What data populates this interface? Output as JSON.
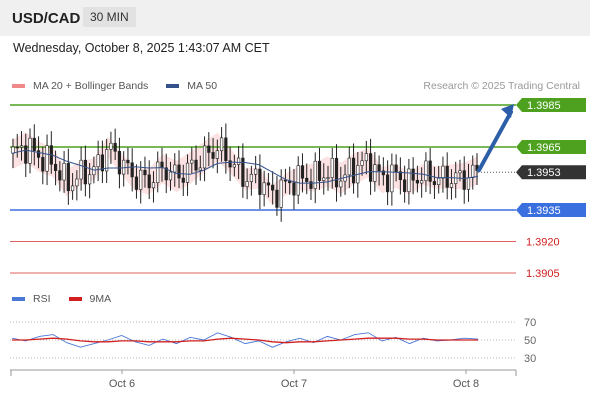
{
  "header": {
    "symbol": "USD/CAD",
    "timeframe": "30 MIN"
  },
  "datetime": "Wednesday, October 8, 2025 1:43:07 AM CET",
  "legend": {
    "ma_label": "MA 20 + Bollinger Bands",
    "ma50_label": "MA 50",
    "credit": "Research © 2025 Trading Central"
  },
  "rsi_legend": {
    "rsi_label": "RSI",
    "ma_label": "9MA"
  },
  "colors": {
    "resistance": "#4da11f",
    "support_blue": "#3a6fe0",
    "support_red": "#e06060",
    "current": "#333333",
    "arrow": "#2d5fa8",
    "band_fill": "#fbd8d8",
    "ma50": "#33528c",
    "rsi": "#4a78d6",
    "rsi_ma": "#d22020",
    "candle": "#222222"
  },
  "chart_data": [
    {
      "type": "candlestick",
      "title": "USD/CAD",
      "x_ticks": [
        "Oct 6",
        "Oct 7",
        "Oct 8"
      ],
      "ylim": [
        1.3897,
        1.3993
      ],
      "levels": [
        {
          "value": 1.3985,
          "label": "1.3985",
          "kind": "resistance"
        },
        {
          "value": 1.3965,
          "label": "1.3965",
          "kind": "resistance"
        },
        {
          "value": 1.3953,
          "label": "1.3953",
          "kind": "current"
        },
        {
          "value": 1.3935,
          "label": "1.3935",
          "kind": "support"
        },
        {
          "value": 1.392,
          "label": "1.3920",
          "kind": "support2"
        },
        {
          "value": 1.3905,
          "label": "1.3905",
          "kind": "support2"
        }
      ],
      "projection": {
        "from": 1.3953,
        "to": 1.3985,
        "direction": "up"
      },
      "approx_close_path": [
        1.3962,
        1.3965,
        1.396,
        1.3957,
        1.3947,
        1.3952,
        1.3954,
        1.3965,
        1.3957,
        1.395,
        1.3949,
        1.3955,
        1.3951,
        1.3955,
        1.396,
        1.3965,
        1.3958,
        1.395,
        1.395,
        1.3942,
        1.3947,
        1.395,
        1.395,
        1.3953,
        1.395,
        1.3955,
        1.3958,
        1.395,
        1.3952,
        1.3948,
        1.3952,
        1.395,
        1.395,
        1.395,
        1.3953
      ]
    },
    {
      "type": "line",
      "title": "RSI",
      "series": [
        {
          "name": "RSI",
          "values": [
            52,
            49,
            54,
            56,
            47,
            42,
            46,
            50,
            55,
            48,
            44,
            51,
            46,
            53,
            50,
            58,
            53,
            46,
            49,
            42,
            48,
            52,
            47,
            54,
            50,
            56,
            58,
            49,
            53,
            46,
            52,
            49,
            50,
            52,
            51
          ]
        },
        {
          "name": "9MA",
          "values": [
            50,
            50,
            51,
            52,
            51,
            49,
            48,
            48,
            49,
            49,
            48,
            48,
            48,
            49,
            49,
            51,
            52,
            51,
            50,
            48,
            47,
            48,
            48,
            49,
            50,
            51,
            52,
            52,
            52,
            51,
            51,
            50,
            50,
            50,
            50
          ]
        }
      ],
      "ylim": [
        20,
        80
      ],
      "y_ticks": [
        "70",
        "50",
        "30"
      ],
      "gridlines": [
        70,
        50,
        30
      ]
    }
  ]
}
